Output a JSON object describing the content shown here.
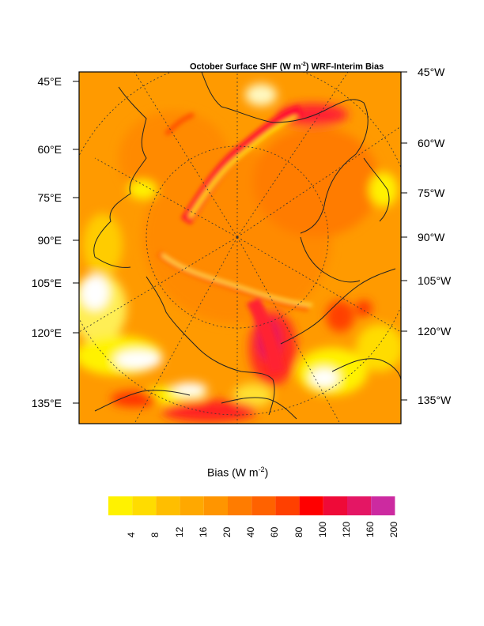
{
  "title": {
    "prefix": "October Surface SHF (W m",
    "sup": "-2",
    "suffix": ") WRF-Interim Bias"
  },
  "left_labels": [
    "45°E",
    "60°E",
    "75°E",
    "90°E",
    "105°E",
    "120°E",
    "135°E"
  ],
  "right_labels": [
    "45°W",
    "60°W",
    "75°W",
    "90°W",
    "105°W",
    "120°W",
    "135°W"
  ],
  "colorbar": {
    "label_prefix": "Bias (W m",
    "label_sup": "-2",
    "label_suffix": ")",
    "ticks": [
      "4",
      "8",
      "12",
      "16",
      "20",
      "40",
      "60",
      "80",
      "100",
      "120",
      "160",
      "200"
    ],
    "colors": [
      "#fff200",
      "#ffdc00",
      "#ffbe00",
      "#ffa800",
      "#ff9500",
      "#ff7c00",
      "#ff6200",
      "#ff4000",
      "#ff0000",
      "#ef0a38",
      "#e41664",
      "#cc2aa0"
    ]
  }
}
